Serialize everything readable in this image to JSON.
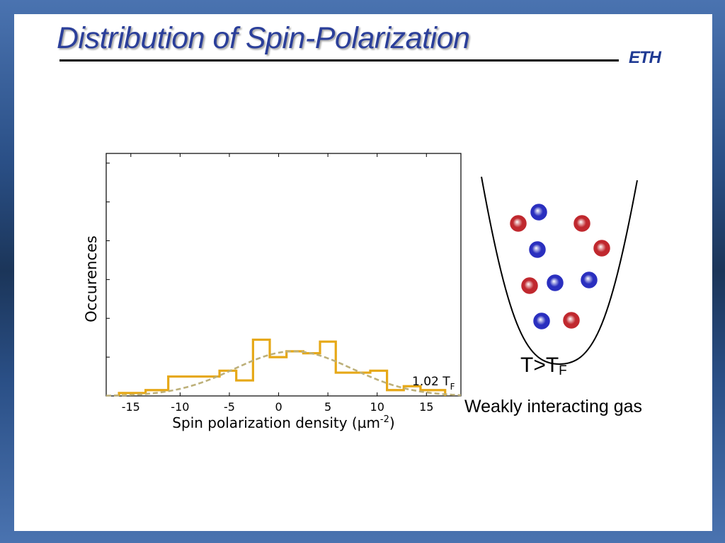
{
  "slide": {
    "title": "Distribution of Spin-Polarization",
    "logo": "ETH"
  },
  "chart_data": {
    "type": "histogram",
    "xlabel_main": "Spin polarization density (µm",
    "xlabel_sup": "-2",
    "xlabel_end": ")",
    "ylabel": "Occurences",
    "xlim": [
      -17.5,
      18.5
    ],
    "ylim": [
      0,
      12.5
    ],
    "x_ticks": [
      -15,
      -10,
      -5,
      0,
      5,
      10,
      15
    ],
    "y_ticks_labeled": false,
    "annotation_main": "1.02 T",
    "annotation_sub": "F",
    "histogram": {
      "color": "#e6a817",
      "bin_edges": [
        -16.2,
        -13.5,
        -11.2,
        -7.7,
        -6.0,
        -4.3,
        -2.6,
        -0.9,
        0.8,
        2.5,
        4.2,
        5.8,
        7.5,
        9.3,
        11.0,
        12.7,
        14.4,
        16.9
      ],
      "counts": [
        0.15,
        0.3,
        1.0,
        1.0,
        1.3,
        0.8,
        2.9,
        2.0,
        2.3,
        2.2,
        2.8,
        1.2,
        1.2,
        1.3,
        0.3,
        0.5,
        0.3
      ]
    },
    "fit": {
      "type": "gaussian",
      "style": "dashed",
      "color": "#bdb07a",
      "amplitude": 2.3,
      "center": 1.5,
      "sigma": 6.0
    }
  },
  "trap": {
    "label_main": "T>T",
    "label_sub": "F",
    "caption": "Weakly interacting gas",
    "red_color": "#c0282e",
    "blue_color": "#2a2fbf"
  }
}
